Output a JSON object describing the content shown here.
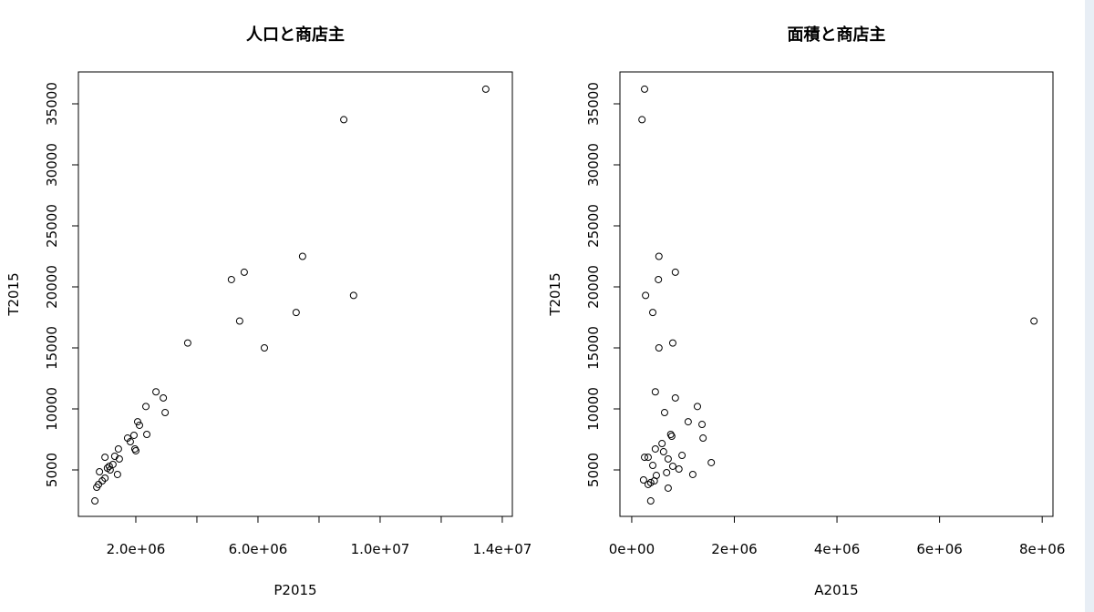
{
  "chart_data": [
    {
      "type": "scatter",
      "title": "人口と商店主",
      "x_label": "P2015",
      "y_label": "T2015",
      "color": "#000000",
      "x": [
        13460000,
        8810000,
        7460000,
        5550000,
        5130000,
        9130000,
        5400000,
        7250000,
        3700000,
        6210000,
        2660000,
        2900000,
        2330000,
        2960000,
        2060000,
        2120000,
        2360000,
        1940000,
        1730000,
        1820000,
        1970000,
        2000000,
        1430000,
        1310000,
        1460000,
        990000,
        1250000,
        1130000,
        1160000,
        1070000,
        810000,
        1400000,
        990000,
        900000,
        780000,
        720000,
        660000
      ],
      "y": [
        36200,
        33700,
        22500,
        21200,
        20600,
        19300,
        17200,
        17900,
        15400,
        15000,
        11400,
        10900,
        10200,
        9700,
        8950,
        8660,
        7910,
        7840,
        7610,
        7310,
        6720,
        6570,
        6720,
        6120,
        5900,
        6040,
        5450,
        5300,
        5000,
        5150,
        4850,
        4630,
        4330,
        4100,
        3810,
        3580,
        2460
      ],
      "xlim": [
        120000,
        14330000
      ],
      "ylim": [
        1194,
        37612
      ],
      "xticks": [
        {
          "value": 2000000,
          "label": "2.0e+06"
        },
        {
          "value": 4000000,
          "label": null
        },
        {
          "value": 6000000,
          "label": "6.0e+06"
        },
        {
          "value": 8000000,
          "label": null
        },
        {
          "value": 10000000,
          "label": "1.0e+07"
        },
        {
          "value": 12000000,
          "label": null
        },
        {
          "value": 14000000,
          "label": "1.4e+07"
        }
      ],
      "yticks": [
        5000,
        10000,
        15000,
        20000,
        25000,
        30000,
        35000
      ]
    },
    {
      "type": "scatter",
      "title": "面積と商店主",
      "x_label": "A2015",
      "y_label": "T2015",
      "color": "#000000",
      "x": [
        250000,
        200000,
        530000,
        850000,
        520000,
        270000,
        410000,
        7840000,
        800000,
        530000,
        460000,
        850000,
        1280000,
        640000,
        1100000,
        1370000,
        760000,
        780000,
        1390000,
        590000,
        980000,
        460000,
        320000,
        620000,
        710000,
        1550000,
        410000,
        920000,
        800000,
        250000,
        680000,
        480000,
        1190000,
        440000,
        230000,
        370000,
        320000,
        710000,
        370000
      ],
      "y": [
        36200,
        33700,
        22500,
        21200,
        20600,
        19300,
        17900,
        17200,
        15400,
        15000,
        11400,
        10900,
        10200,
        9700,
        8950,
        8730,
        7910,
        7760,
        7610,
        7160,
        6190,
        6720,
        6040,
        6490,
        5900,
        5600,
        5370,
        5070,
        5300,
        6040,
        4780,
        4550,
        4630,
        4100,
        4180,
        3960,
        3810,
        3510,
        2460
      ],
      "xlim": [
        -230000,
        8210000
      ],
      "ylim": [
        1194,
        37612
      ],
      "xticks": [
        {
          "value": 0,
          "label": "0e+00"
        },
        {
          "value": 2000000,
          "label": "2e+06"
        },
        {
          "value": 4000000,
          "label": "4e+06"
        },
        {
          "value": 6000000,
          "label": "6e+06"
        },
        {
          "value": 8000000,
          "label": "8e+06"
        }
      ],
      "yticks": [
        5000,
        10000,
        15000,
        20000,
        25000,
        30000,
        35000
      ]
    }
  ]
}
